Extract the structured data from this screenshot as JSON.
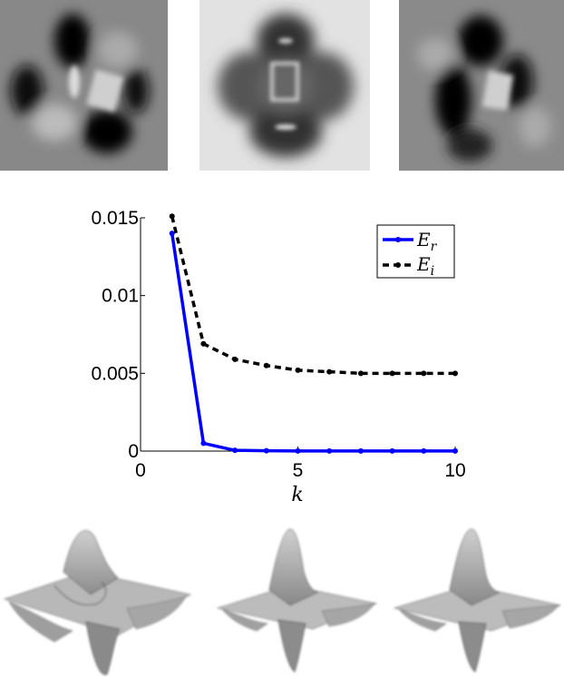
{
  "chart_data": {
    "type": "line",
    "xlabel": "k",
    "ylabel": "",
    "xlim": [
      0,
      10
    ],
    "ylim": [
      0,
      0.015
    ],
    "x_ticks": [
      "0",
      "5",
      "10"
    ],
    "y_ticks": [
      "0",
      "0.005",
      "0.01",
      "0.015"
    ],
    "legend_position": "top-right",
    "x": [
      1,
      2,
      3,
      4,
      5,
      6,
      7,
      8,
      9,
      10
    ],
    "series": [
      {
        "name": "E_r",
        "legend_main": "E",
        "legend_sub": "r",
        "color": "#0000ff",
        "style": "solid-with-dot-markers",
        "values": [
          0.014,
          0.0005,
          5e-05,
          2e-05,
          1e-05,
          1e-05,
          1e-05,
          1e-05,
          1e-05,
          1e-05
        ]
      },
      {
        "name": "E_i",
        "legend_main": "E",
        "legend_sub": "i",
        "color": "#000000",
        "style": "dashed-with-dot-markers",
        "values": [
          0.0151,
          0.0069,
          0.0059,
          0.0055,
          0.0052,
          0.0051,
          0.005,
          0.005,
          0.005,
          0.005
        ]
      }
    ]
  },
  "images": {
    "top": [
      "grayscale-field-1",
      "grayscale-field-2",
      "grayscale-field-3"
    ],
    "bottom": [
      "surface-plot-1",
      "surface-plot-2",
      "surface-plot-3"
    ]
  }
}
